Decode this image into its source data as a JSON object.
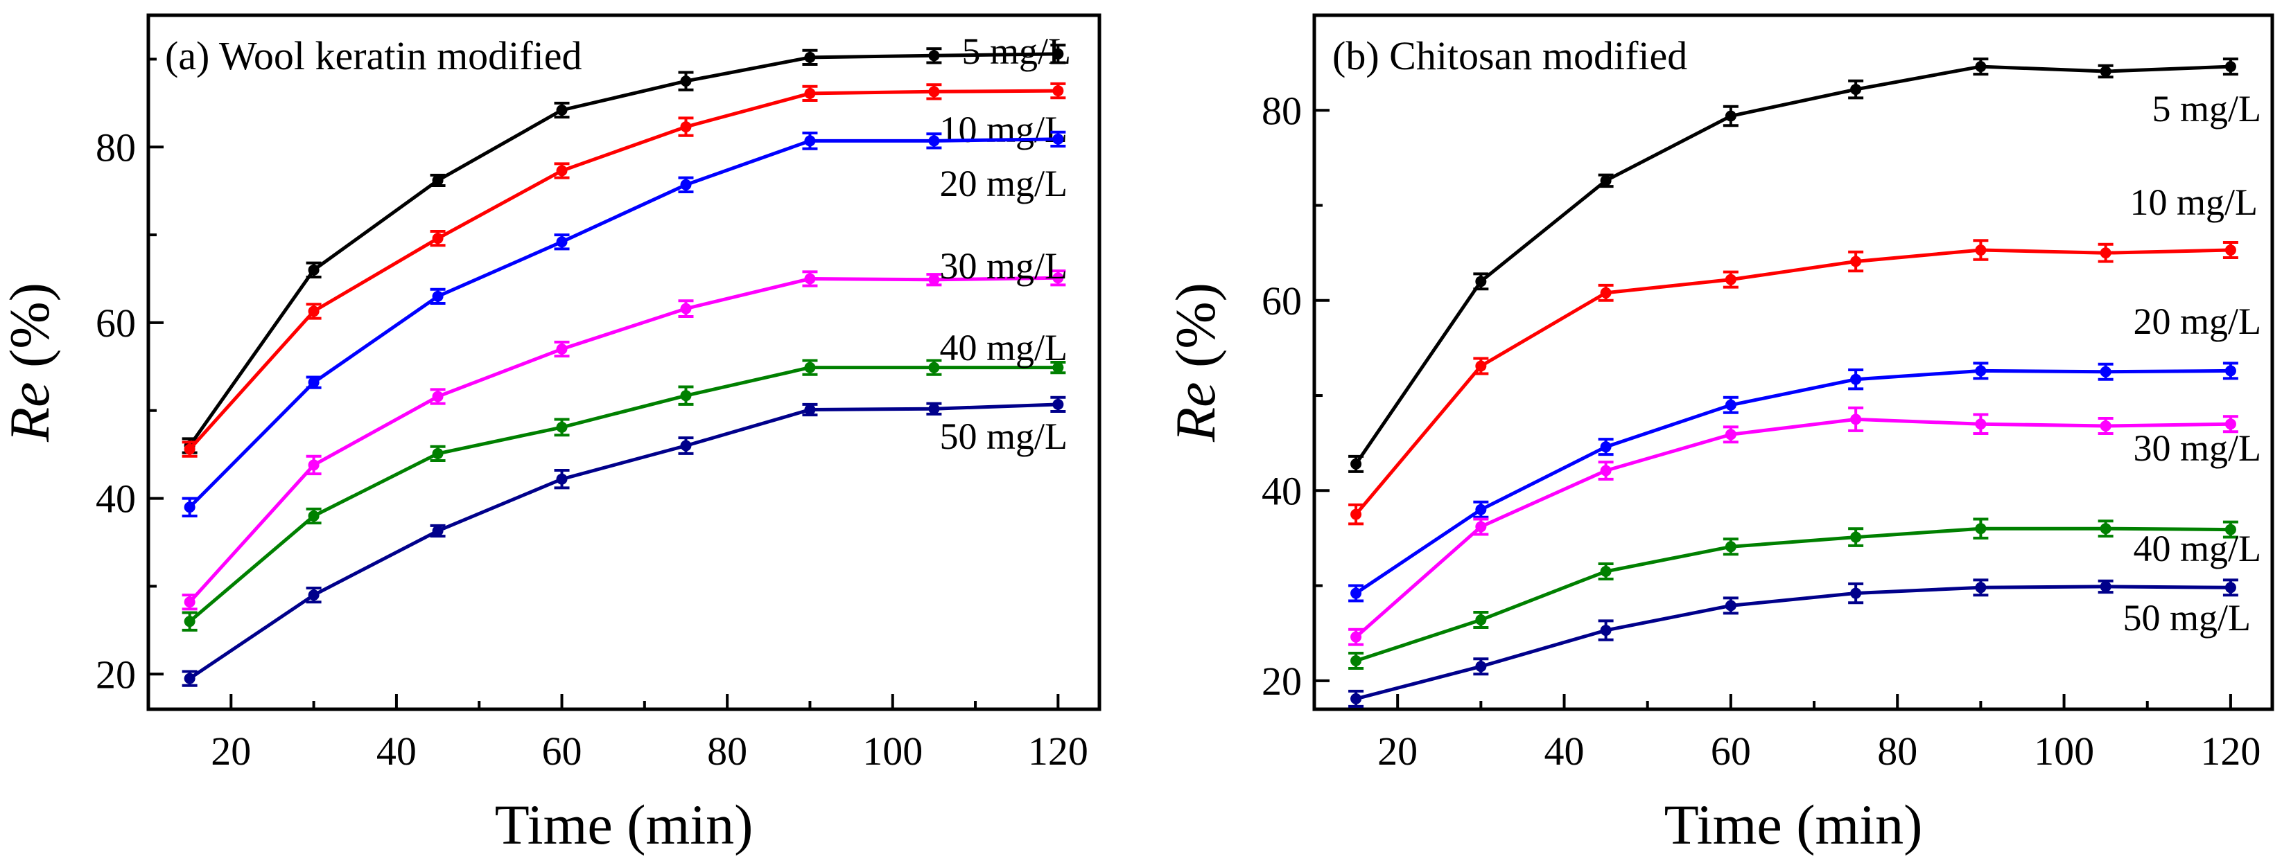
{
  "chart_data": [
    {
      "type": "line",
      "title": "(a) Wool keratin modified",
      "xlabel": "Time (min)",
      "ylabel_italic": "Re",
      "ylabel_rest": " (%)",
      "xlim": [
        10,
        125
      ],
      "ylim": [
        16,
        95
      ],
      "xticks": [
        20,
        40,
        60,
        80,
        100,
        120
      ],
      "yticks": [
        20,
        40,
        60,
        80
      ],
      "x": [
        15,
        30,
        45,
        60,
        75,
        90,
        105,
        120
      ],
      "series": [
        {
          "name": "5 mg/L",
          "color": "#000000",
          "values": [
            46.0,
            66.0,
            76.2,
            84.2,
            87.5,
            90.2,
            90.4,
            90.6
          ],
          "errors": [
            0.8,
            0.8,
            0.6,
            0.8,
            1.0,
            0.8,
            0.8,
            1.0
          ]
        },
        {
          "name": "10 mg/L",
          "color": "#ff0000",
          "values": [
            45.6,
            61.3,
            69.6,
            77.3,
            82.3,
            86.1,
            86.3,
            86.4
          ],
          "errors": [
            0.8,
            0.8,
            0.8,
            0.8,
            1.0,
            0.8,
            0.8,
            0.8
          ]
        },
        {
          "name": "20 mg/L",
          "color": "#0000ff",
          "values": [
            39.0,
            53.2,
            63.0,
            69.2,
            75.7,
            80.7,
            80.7,
            80.9
          ],
          "errors": [
            1.0,
            0.6,
            0.8,
            0.8,
            0.8,
            0.9,
            0.8,
            0.8
          ]
        },
        {
          "name": "30 mg/L",
          "color": "#ff00ff",
          "values": [
            28.2,
            43.8,
            51.6,
            57.0,
            61.6,
            65.0,
            64.9,
            65.1
          ],
          "errors": [
            0.8,
            1.0,
            0.8,
            0.8,
            0.9,
            0.8,
            0.6,
            0.8
          ]
        },
        {
          "name": "40 mg/L",
          "color": "#008000",
          "values": [
            26.0,
            38.0,
            45.1,
            48.1,
            51.7,
            54.9,
            54.9,
            54.9
          ],
          "errors": [
            1.0,
            0.8,
            0.8,
            0.9,
            1.0,
            0.8,
            0.8,
            0.6
          ]
        },
        {
          "name": "50 mg/L",
          "color": "#00008b",
          "values": [
            19.5,
            29.0,
            36.3,
            42.2,
            46.0,
            50.1,
            50.2,
            50.7
          ],
          "errors": [
            0.8,
            0.8,
            0.6,
            1.0,
            0.9,
            0.6,
            0.6,
            0.8
          ]
        }
      ]
    },
    {
      "type": "line",
      "title": "(b) Chitosan modified",
      "xlabel": "Time (min)",
      "ylabel_italic": "Re",
      "ylabel_rest": " (%)",
      "xlim": [
        10,
        125
      ],
      "ylim": [
        17,
        90
      ],
      "xticks": [
        20,
        40,
        60,
        80,
        100,
        120
      ],
      "yticks": [
        20,
        40,
        60,
        80
      ],
      "x": [
        15,
        30,
        45,
        60,
        75,
        90,
        105,
        120
      ],
      "series": [
        {
          "name": "5 mg/L",
          "color": "#000000",
          "values": [
            42.8,
            62.0,
            72.6,
            79.4,
            82.2,
            84.6,
            84.1,
            84.6
          ],
          "errors": [
            0.8,
            0.8,
            0.6,
            1.0,
            0.9,
            0.8,
            0.6,
            0.8
          ]
        },
        {
          "name": "10 mg/L",
          "color": "#ff0000",
          "values": [
            37.5,
            53.1,
            60.8,
            62.2,
            64.1,
            65.3,
            65.0,
            65.3
          ],
          "errors": [
            1.0,
            0.8,
            0.8,
            0.8,
            1.0,
            1.0,
            0.9,
            0.8
          ]
        },
        {
          "name": "20 mg/L",
          "color": "#0000ff",
          "values": [
            29.2,
            38.0,
            44.6,
            49.0,
            51.7,
            52.6,
            52.5,
            52.6
          ],
          "errors": [
            0.8,
            0.8,
            0.8,
            0.8,
            1.0,
            0.8,
            0.8,
            0.8
          ]
        },
        {
          "name": "30 mg/L",
          "color": "#ff00ff",
          "values": [
            24.6,
            36.2,
            42.1,
            45.9,
            47.5,
            47.0,
            46.8,
            47.0
          ],
          "errors": [
            0.8,
            0.8,
            0.9,
            0.8,
            1.2,
            1.0,
            0.8,
            0.8
          ]
        },
        {
          "name": "40 mg/L",
          "color": "#008000",
          "values": [
            22.1,
            26.4,
            31.5,
            34.1,
            35.1,
            36.0,
            36.0,
            35.9
          ],
          "errors": [
            0.8,
            0.8,
            0.8,
            0.8,
            0.9,
            1.0,
            0.8,
            0.8
          ]
        },
        {
          "name": "50 mg/L",
          "color": "#00008b",
          "values": [
            18.1,
            21.5,
            25.3,
            27.9,
            29.2,
            29.8,
            29.9,
            29.8
          ],
          "errors": [
            0.8,
            0.8,
            1.0,
            0.8,
            1.0,
            0.8,
            0.6,
            0.8
          ]
        }
      ]
    }
  ]
}
